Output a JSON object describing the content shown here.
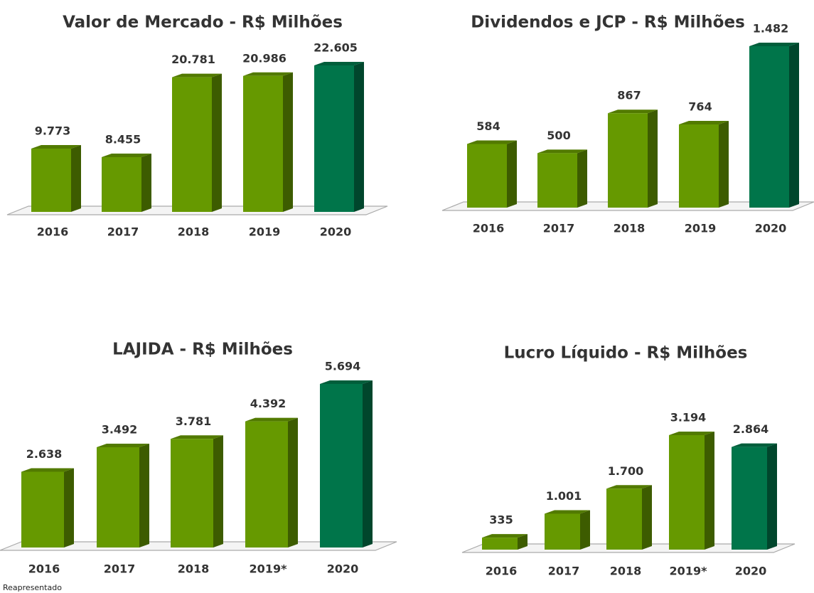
{
  "chart_data": [
    {
      "type": "bar3d",
      "title": "Valor de Mercado - R$ Milhões",
      "categories": [
        "2016",
        "2017",
        "2018",
        "2019",
        "2020"
      ],
      "values": [
        9773,
        8455,
        20781,
        20986,
        22605
      ],
      "value_labels": [
        "9.773",
        "8.455",
        "20.781",
        "20.986",
        "22.605"
      ],
      "colors": [
        "#669900",
        "#669900",
        "#669900",
        "#669900",
        "#00754a"
      ]
    },
    {
      "type": "bar3d",
      "title": "Dividendos e JCP - R$ Milhões",
      "categories": [
        "2016",
        "2017",
        "2018",
        "2019",
        "2020"
      ],
      "values": [
        584,
        500,
        867,
        764,
        1482
      ],
      "value_labels": [
        "584",
        "500",
        "867",
        "764",
        "1.482"
      ],
      "colors": [
        "#669900",
        "#669900",
        "#669900",
        "#669900",
        "#00754a"
      ]
    },
    {
      "type": "bar3d",
      "title": "LAJIDA - R$ Milhões",
      "categories": [
        "2016",
        "2017",
        "2018",
        "2019*",
        "2020"
      ],
      "values": [
        2638,
        3492,
        3781,
        4392,
        5694
      ],
      "value_labels": [
        "2.638",
        "3.492",
        "3.781",
        "4.392",
        "5.694"
      ],
      "colors": [
        "#669900",
        "#669900",
        "#669900",
        "#669900",
        "#00754a"
      ]
    },
    {
      "type": "bar3d",
      "title": "Lucro Líquido - R$ Milhões",
      "categories": [
        "2016",
        "2017",
        "2018",
        "2019*",
        "2020"
      ],
      "values": [
        335,
        1001,
        1700,
        3194,
        2864
      ],
      "value_labels": [
        "335",
        "1.001",
        "1.700",
        "3.194",
        "2.864"
      ],
      "colors": [
        "#669900",
        "#669900",
        "#669900",
        "#669900",
        "#00754a"
      ]
    }
  ],
  "footnote": "Reapresentado"
}
